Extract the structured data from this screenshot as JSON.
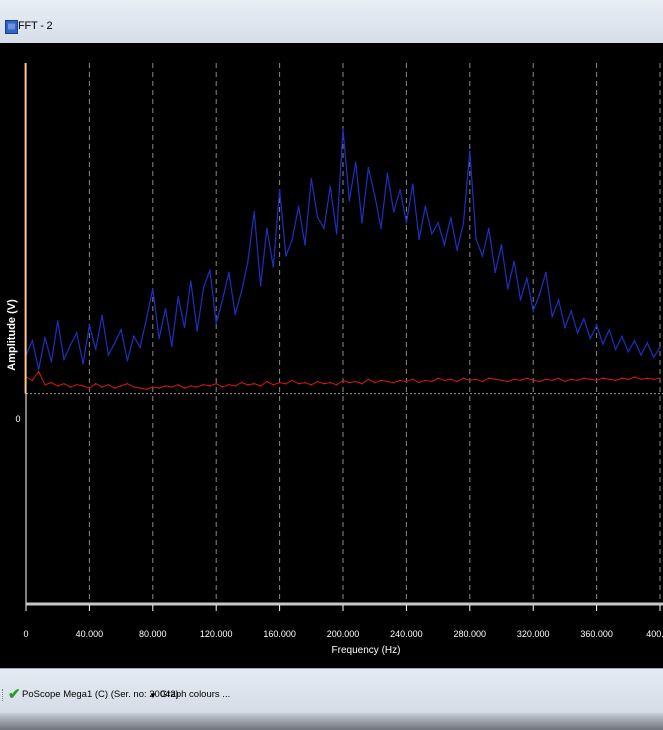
{
  "window": {
    "title": "FFT - 2",
    "icon": "app-icon"
  },
  "status": {
    "check_icon": "✔",
    "device": "PoScope Mega1 (C) (Ser. no: 20042)",
    "graph_colours_label": "Graph colours ...",
    "arrow_icon": "▼"
  },
  "colors": {
    "series_fft": "#1f2fc0",
    "series_ref": "#d01818",
    "background": "#000000",
    "axis": "#ffffff"
  },
  "chart_data": {
    "type": "line",
    "title": "",
    "xlabel": "Frequency (Hz)",
    "ylabel": "Amplitude (V)",
    "xlim": [
      0,
      400
    ],
    "x_ticks": [
      0,
      40,
      80,
      120,
      160,
      200,
      240,
      280,
      320,
      360,
      400
    ],
    "x_tick_labels": [
      "0",
      "40.000",
      "80.000",
      "120.000",
      "160.000",
      "200.000",
      "240.000",
      "280.000",
      "320.000",
      "360.000",
      "400."
    ],
    "ylim": [
      -1.9,
      3.0
    ],
    "y_tick_labels": [
      "0"
    ],
    "grid": true,
    "series": [
      {
        "color": "#1f2fc0",
        "x": [
          0,
          4,
          8,
          12,
          16,
          20,
          24,
          28,
          32,
          36,
          40,
          44,
          48,
          52,
          56,
          60,
          64,
          68,
          72,
          76,
          80,
          84,
          88,
          92,
          96,
          100,
          104,
          108,
          112,
          116,
          120,
          124,
          128,
          132,
          136,
          140,
          144,
          148,
          152,
          156,
          160,
          164,
          168,
          172,
          176,
          180,
          184,
          188,
          192,
          196,
          200,
          204,
          208,
          212,
          216,
          220,
          224,
          228,
          232,
          236,
          240,
          244,
          248,
          252,
          256,
          260,
          264,
          268,
          272,
          276,
          280,
          284,
          288,
          292,
          296,
          300,
          304,
          308,
          312,
          316,
          320,
          324,
          328,
          332,
          336,
          340,
          344,
          348,
          352,
          356,
          360,
          364,
          368,
          372,
          376,
          380,
          384,
          388,
          392,
          396,
          400
        ],
        "values": [
          0.35,
          0.48,
          0.22,
          0.51,
          0.29,
          0.66,
          0.31,
          0.44,
          0.55,
          0.27,
          0.62,
          0.4,
          0.71,
          0.35,
          0.46,
          0.58,
          0.3,
          0.52,
          0.42,
          0.68,
          0.95,
          0.5,
          0.77,
          0.43,
          0.88,
          0.6,
          1.02,
          0.57,
          0.96,
          1.12,
          0.64,
          0.85,
          1.1,
          0.72,
          0.93,
          1.2,
          1.65,
          0.98,
          1.5,
          1.15,
          1.85,
          1.25,
          1.4,
          1.7,
          1.35,
          1.95,
          1.6,
          1.5,
          1.88,
          1.45,
          2.4,
          1.75,
          2.1,
          1.55,
          2.05,
          1.8,
          1.5,
          2.0,
          1.65,
          1.85,
          1.55,
          1.9,
          1.4,
          1.7,
          1.45,
          1.55,
          1.35,
          1.6,
          1.3,
          1.55,
          2.2,
          1.4,
          1.25,
          1.5,
          1.1,
          1.35,
          0.95,
          1.2,
          0.85,
          1.05,
          0.75,
          0.9,
          1.1,
          0.7,
          0.85,
          0.6,
          0.75,
          0.55,
          0.68,
          0.5,
          0.62,
          0.45,
          0.58,
          0.4,
          0.52,
          0.38,
          0.48,
          0.35,
          0.46,
          0.33,
          0.42
        ]
      },
      {
        "color": "#d01818",
        "x": [
          0,
          4,
          8,
          12,
          16,
          20,
          24,
          28,
          32,
          36,
          40,
          44,
          48,
          52,
          56,
          60,
          64,
          68,
          72,
          76,
          80,
          84,
          88,
          92,
          96,
          100,
          104,
          108,
          112,
          116,
          120,
          124,
          128,
          132,
          136,
          140,
          144,
          148,
          152,
          156,
          160,
          164,
          168,
          172,
          176,
          180,
          184,
          188,
          192,
          196,
          200,
          204,
          208,
          212,
          216,
          220,
          224,
          228,
          232,
          236,
          240,
          244,
          248,
          252,
          256,
          260,
          264,
          268,
          272,
          276,
          280,
          284,
          288,
          292,
          296,
          300,
          304,
          308,
          312,
          316,
          320,
          324,
          328,
          332,
          336,
          340,
          344,
          348,
          352,
          356,
          360,
          364,
          368,
          372,
          376,
          380,
          384,
          388,
          392,
          396,
          400
        ],
        "values": [
          0.15,
          0.12,
          0.2,
          0.08,
          0.1,
          0.07,
          0.09,
          0.06,
          0.08,
          0.07,
          0.05,
          0.09,
          0.06,
          0.08,
          0.05,
          0.07,
          0.09,
          0.06,
          0.05,
          0.04,
          0.06,
          0.05,
          0.07,
          0.06,
          0.08,
          0.05,
          0.07,
          0.06,
          0.08,
          0.07,
          0.09,
          0.06,
          0.08,
          0.07,
          0.1,
          0.08,
          0.09,
          0.07,
          0.11,
          0.08,
          0.1,
          0.09,
          0.12,
          0.09,
          0.1,
          0.08,
          0.11,
          0.09,
          0.1,
          0.08,
          0.12,
          0.1,
          0.11,
          0.09,
          0.13,
          0.1,
          0.12,
          0.11,
          0.1,
          0.12,
          0.11,
          0.13,
          0.1,
          0.12,
          0.11,
          0.14,
          0.12,
          0.13,
          0.11,
          0.14,
          0.12,
          0.13,
          0.11,
          0.14,
          0.13,
          0.12,
          0.11,
          0.13,
          0.12,
          0.14,
          0.12,
          0.11,
          0.13,
          0.12,
          0.14,
          0.11,
          0.13,
          0.12,
          0.14,
          0.13,
          0.12,
          0.14,
          0.13,
          0.12,
          0.14,
          0.13,
          0.15,
          0.13,
          0.14,
          0.13,
          0.14
        ]
      }
    ]
  }
}
